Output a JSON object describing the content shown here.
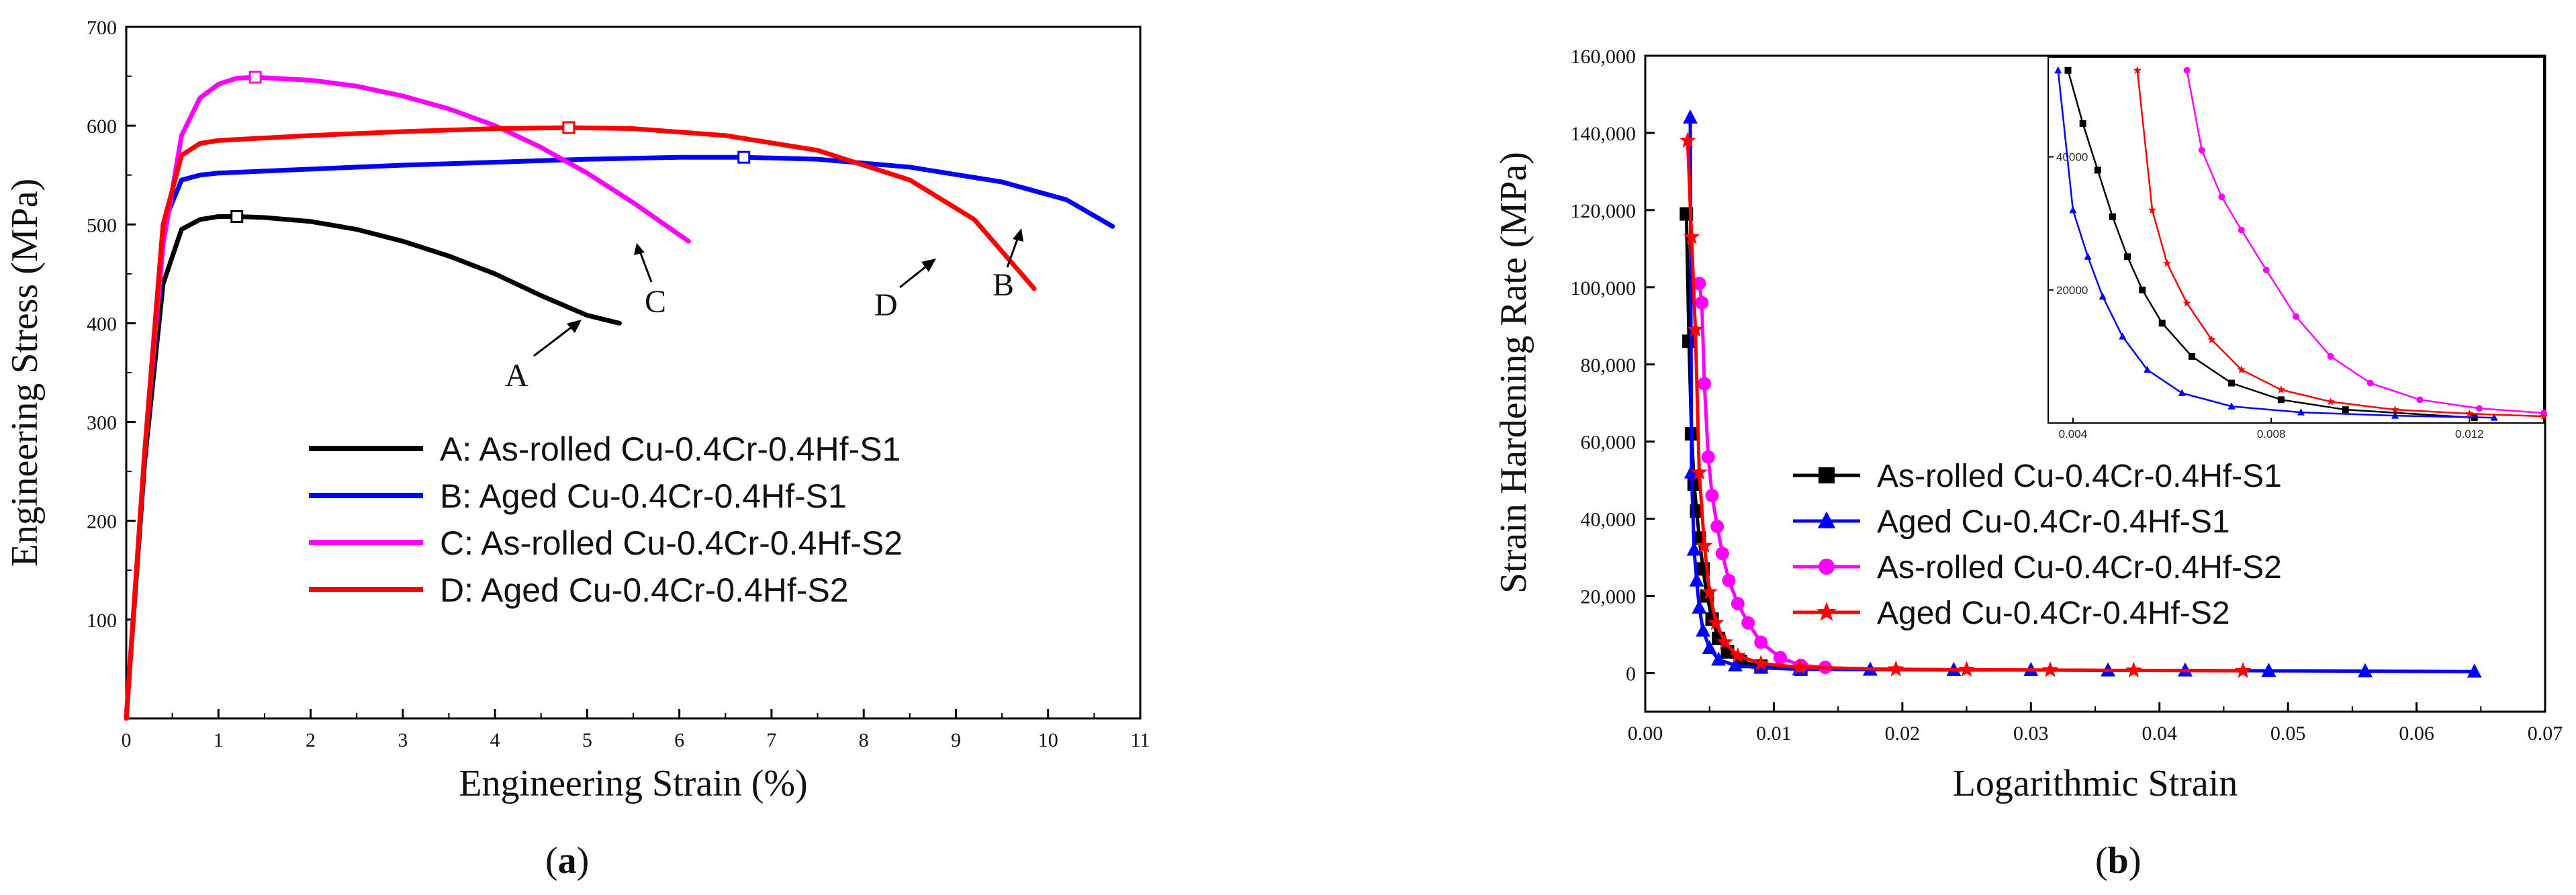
{
  "chart_data": [
    {
      "panel": "(a)",
      "panel_letter": "a",
      "type": "line",
      "xlabel": "Engineering Strain (%)",
      "ylabel": "Engineering Stress (MPa)",
      "xlim": [
        0,
        11
      ],
      "ylim": [
        0,
        700
      ],
      "xticks": [
        0,
        1,
        2,
        3,
        4,
        5,
        6,
        7,
        8,
        9,
        10,
        11
      ],
      "yticks": [
        100,
        200,
        300,
        400,
        500,
        600,
        700
      ],
      "legend_position": "lower-right",
      "series": [
        {
          "name": "A: As-rolled Cu-0.4Cr-0.4Hf-S1",
          "color": "#000000",
          "x": [
            0,
            0.2,
            0.4,
            0.6,
            0.8,
            1.0,
            1.2,
            1.5,
            2.0,
            2.5,
            3.0,
            3.5,
            4.0,
            4.5,
            5.0,
            5.35
          ],
          "y": [
            0,
            260,
            440,
            495,
            505,
            508,
            508,
            507,
            503,
            495,
            483,
            468,
            450,
            428,
            408,
            400
          ],
          "marker": {
            "x": 1.2,
            "y": 508
          }
        },
        {
          "name": "B: Aged Cu-0.4Cr-0.4Hf-S1",
          "color": "#0000ff",
          "x": [
            0,
            0.2,
            0.4,
            0.6,
            0.8,
            1.0,
            2.0,
            3.0,
            4.0,
            5.0,
            6.0,
            6.7,
            7.5,
            8.5,
            9.5,
            10.2,
            10.7
          ],
          "y": [
            0,
            270,
            500,
            545,
            550,
            552,
            556,
            560,
            563,
            566,
            568,
            568,
            566,
            558,
            543,
            525,
            498
          ],
          "marker": {
            "x": 6.7,
            "y": 568
          }
        },
        {
          "name": "C: As-rolled Cu-0.4Cr-0.4Hf-S2",
          "color": "#ff00ff",
          "x": [
            0,
            0.2,
            0.4,
            0.6,
            0.8,
            1.0,
            1.2,
            1.4,
            2.0,
            2.5,
            3.0,
            3.5,
            4.0,
            4.5,
            5.0,
            5.5,
            6.1
          ],
          "y": [
            0,
            270,
            480,
            590,
            628,
            642,
            648,
            649,
            646,
            640,
            630,
            617,
            600,
            578,
            552,
            522,
            483
          ],
          "marker": {
            "x": 1.4,
            "y": 649
          }
        },
        {
          "name": "D: Aged Cu-0.4Cr-0.4Hf-S2",
          "color": "#ff0000",
          "x": [
            0,
            0.2,
            0.4,
            0.6,
            0.8,
            1.0,
            2.0,
            3.0,
            4.0,
            4.8,
            5.5,
            6.5,
            7.5,
            8.5,
            9.2,
            9.85
          ],
          "y": [
            0,
            270,
            500,
            570,
            582,
            585,
            590,
            594,
            597,
            598,
            597,
            590,
            575,
            545,
            505,
            435
          ],
          "marker": {
            "x": 4.8,
            "y": 598
          }
        }
      ],
      "annotations": [
        "A",
        "B",
        "C",
        "D"
      ]
    },
    {
      "panel": "(b)",
      "panel_letter": "b",
      "type": "line",
      "xlabel": "Logarithmic Strain",
      "ylabel": "Strain Hardening Rate (MPa)",
      "xlim": [
        0.0,
        0.07
      ],
      "ylim": [
        -10000,
        160000
      ],
      "xticks": [
        "0.00",
        "0.01",
        "0.02",
        "0.03",
        "0.04",
        "0.05",
        "0.06",
        "0.07"
      ],
      "yticks": [
        "0",
        "20,000",
        "40,000",
        "60,000",
        "80,000",
        "100,000",
        "120,000",
        "140,000",
        "160,000"
      ],
      "legend_position": "center-right",
      "series": [
        {
          "name": "As-rolled Cu-0.4Cr-0.4Hf-S1",
          "color": "#000000",
          "marker": "square",
          "x": [
            0.0032,
            0.0034,
            0.0036,
            0.0038,
            0.004,
            0.0042,
            0.0045,
            0.0048,
            0.0052,
            0.0057,
            0.0064,
            0.0074,
            0.009,
            0.0121
          ],
          "y": [
            119000,
            86000,
            62000,
            49000,
            42000,
            35000,
            27000,
            20000,
            14000,
            9000,
            5500,
            3000,
            1800,
            1000
          ]
        },
        {
          "name": "Aged Cu-0.4Cr-0.4Hf-S1",
          "color": "#0000ff",
          "marker": "triangle",
          "x": [
            0.0035,
            0.0036,
            0.0038,
            0.004,
            0.0042,
            0.0045,
            0.005,
            0.0057,
            0.007,
            0.009,
            0.012,
            0.0175,
            0.024,
            0.03,
            0.036,
            0.042,
            0.0485,
            0.056,
            0.0645
          ],
          "y": [
            144000,
            52000,
            32000,
            24000,
            17000,
            11000,
            6500,
            3500,
            2000,
            1400,
            1000,
            900,
            800,
            800,
            700,
            700,
            600,
            500,
            400
          ]
        },
        {
          "name": "As-rolled Cu-0.4Cr-0.4Hf-S2",
          "color": "#ff00ff",
          "marker": "circle",
          "x": [
            0.0042,
            0.0044,
            0.0046,
            0.0049,
            0.0052,
            0.0056,
            0.006,
            0.0065,
            0.0072,
            0.008,
            0.009,
            0.0105,
            0.0121,
            0.014
          ],
          "y": [
            101000,
            96000,
            75000,
            56000,
            46000,
            38000,
            31000,
            24000,
            18000,
            13000,
            8000,
            4000,
            2000,
            1500
          ]
        },
        {
          "name": "Aged Cu-0.4Cr-0.4Hf-S2",
          "color": "#ff0000",
          "marker": "star",
          "x": [
            0.0033,
            0.0036,
            0.0039,
            0.0042,
            0.0046,
            0.005,
            0.0055,
            0.0062,
            0.0072,
            0.009,
            0.012,
            0.0195,
            0.025,
            0.0315,
            0.038,
            0.0465
          ],
          "y": [
            138000,
            113000,
            89000,
            52000,
            33000,
            21000,
            13000,
            8000,
            4500,
            2500,
            1500,
            1000,
            900,
            800,
            700,
            600
          ]
        }
      ],
      "inset": {
        "xlim": [
          0.0035,
          0.0135
        ],
        "ylim": [
          0,
          55000
        ],
        "xticks": [
          "0.004",
          "0.008",
          "0.012"
        ],
        "yticks": [
          "20000",
          "40000"
        ],
        "series": [
          {
            "color": "#000000",
            "marker": "square",
            "x": [
              0.0039,
              0.0042,
              0.0045,
              0.0048,
              0.0051,
              0.0054,
              0.0058,
              0.0064,
              0.0072,
              0.0082,
              0.0095,
              0.0121
            ],
            "y": [
              53000,
              45000,
              38000,
              31000,
              25000,
              20000,
              15000,
              10000,
              6000,
              3500,
              2000,
              800
            ]
          },
          {
            "color": "#0000ff",
            "marker": "triangle",
            "x": [
              0.0037,
              0.004,
              0.0043,
              0.0046,
              0.005,
              0.0055,
              0.0062,
              0.0072,
              0.0086,
              0.0105,
              0.0125
            ],
            "y": [
              53000,
              32000,
              25000,
              19000,
              13000,
              8000,
              4500,
              2500,
              1600,
              1100,
              800
            ]
          },
          {
            "color": "#ff00ff",
            "marker": "circle",
            "x": [
              0.0063,
              0.0066,
              0.007,
              0.0074,
              0.0079,
              0.0085,
              0.0092,
              0.01,
              0.011,
              0.0122,
              0.0135
            ],
            "y": [
              53000,
              41000,
              34000,
              29000,
              23000,
              16000,
              10000,
              6000,
              3500,
              2200,
              1500
            ]
          },
          {
            "color": "#ff0000",
            "marker": "star",
            "x": [
              0.0053,
              0.0056,
              0.0059,
              0.0063,
              0.0068,
              0.0074,
              0.0082,
              0.0092,
              0.0105,
              0.012,
              0.0135
            ],
            "y": [
              53000,
              32000,
              24000,
              18000,
              12500,
              8000,
              5000,
              3200,
              2000,
              1400,
              1000
            ]
          }
        ]
      }
    }
  ]
}
